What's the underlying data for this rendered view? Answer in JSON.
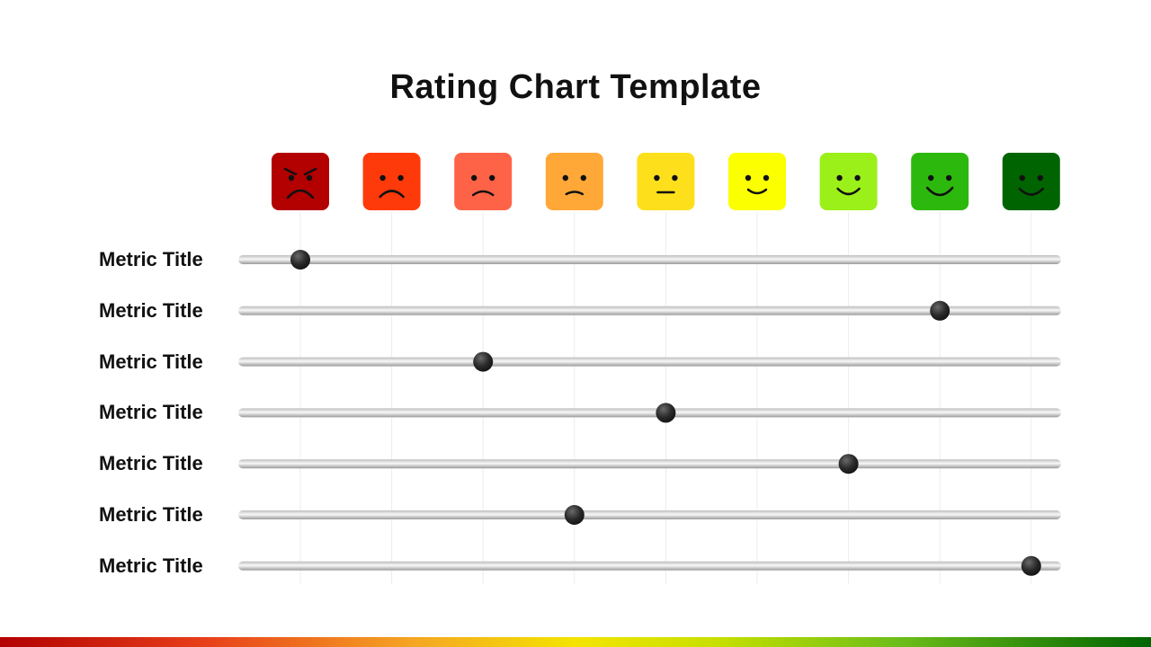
{
  "title": "Rating Chart Template",
  "colors": {
    "faces": [
      "#b30000",
      "#ff3a0a",
      "#ff6347",
      "#ffa838",
      "#fde01b",
      "#fbff00",
      "#9bf01a",
      "#2db80e",
      "#006400"
    ],
    "track": "#d0d0d0",
    "knob": "#2a2a2a"
  },
  "faces": [
    {
      "icon": "angry-face-icon"
    },
    {
      "icon": "sad-face-icon"
    },
    {
      "icon": "frowning-face-icon"
    },
    {
      "icon": "slightly-frowning-face-icon"
    },
    {
      "icon": "neutral-face-icon"
    },
    {
      "icon": "slightly-smiling-face-icon"
    },
    {
      "icon": "smiling-face-icon"
    },
    {
      "icon": "happy-face-icon"
    },
    {
      "icon": "very-happy-face-icon"
    }
  ],
  "chart_data": {
    "type": "scatter",
    "scale": [
      1,
      2,
      3,
      4,
      5,
      6,
      7,
      8,
      9
    ],
    "rows": [
      {
        "label": "Metric Title",
        "value": 1
      },
      {
        "label": "Metric Title",
        "value": 8
      },
      {
        "label": "Metric Title",
        "value": 3
      },
      {
        "label": "Metric Title",
        "value": 5
      },
      {
        "label": "Metric Title",
        "value": 7
      },
      {
        "label": "Metric Title",
        "value": 4
      },
      {
        "label": "Metric Title",
        "value": 9
      }
    ],
    "grid": true
  }
}
